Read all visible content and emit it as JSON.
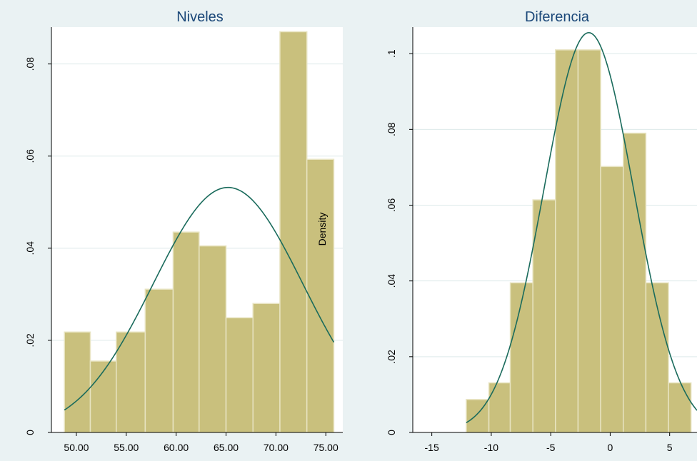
{
  "chart_data": [
    {
      "type": "bar",
      "title": "Niveles",
      "ylabel": "Density",
      "xlim": [
        47.5,
        76.7
      ],
      "ylim": [
        0,
        0.088
      ],
      "x_ticks": [
        50,
        55,
        60,
        65,
        70,
        75
      ],
      "x_tick_labels": [
        "50.00",
        "55.00",
        "60.00",
        "65.00",
        "70.00",
        "75.00"
      ],
      "y_ticks": [
        0,
        0.02,
        0.04,
        0.06,
        0.08
      ],
      "y_tick_labels": [
        "0",
        ".02",
        ".04",
        ".06",
        ".08"
      ],
      "bins": [
        {
          "x0": 48.8,
          "x1": 51.4,
          "value": 0.0218
        },
        {
          "x0": 51.4,
          "x1": 54.0,
          "value": 0.0155
        },
        {
          "x0": 54.0,
          "x1": 56.9,
          "value": 0.0218
        },
        {
          "x0": 56.9,
          "x1": 59.7,
          "value": 0.0311
        },
        {
          "x0": 59.7,
          "x1": 62.3,
          "value": 0.0435
        },
        {
          "x0": 62.3,
          "x1": 65.0,
          "value": 0.0405
        },
        {
          "x0": 65.0,
          "x1": 67.7,
          "value": 0.0249
        },
        {
          "x0": 67.7,
          "x1": 70.4,
          "value": 0.028
        },
        {
          "x0": 70.4,
          "x1": 73.1,
          "value": 0.087
        },
        {
          "x0": 73.1,
          "x1": 75.8,
          "value": 0.0593
        }
      ],
      "normal_curve": {
        "mean": 65.2,
        "sd": 7.5,
        "x_range": [
          48.8,
          75.8
        ]
      }
    },
    {
      "type": "bar",
      "title": "Diferencia",
      "ylabel": "Density",
      "xlim": [
        -16.6,
        7.3
      ],
      "ylim": [
        0,
        0.107
      ],
      "x_ticks": [
        -15,
        -10,
        -5,
        0,
        5
      ],
      "x_tick_labels": [
        "-15",
        "-10",
        "-5",
        "0",
        "5"
      ],
      "y_ticks": [
        0,
        0.02,
        0.04,
        0.06,
        0.08,
        0.1
      ],
      "y_tick_labels": [
        "0",
        ".02",
        ".04",
        ".06",
        ".08",
        ".1"
      ],
      "bins": [
        {
          "x0": -12.1,
          "x1": -10.2,
          "value": 0.0087
        },
        {
          "x0": -10.2,
          "x1": -8.4,
          "value": 0.0131
        },
        {
          "x0": -8.4,
          "x1": -6.5,
          "value": 0.0395
        },
        {
          "x0": -6.5,
          "x1": -4.6,
          "value": 0.0614
        },
        {
          "x0": -4.6,
          "x1": -2.7,
          "value": 0.101
        },
        {
          "x0": -2.7,
          "x1": -0.8,
          "value": 0.101
        },
        {
          "x0": -0.8,
          "x1": 1.1,
          "value": 0.0702
        },
        {
          "x0": 1.1,
          "x1": 3.0,
          "value": 0.079
        },
        {
          "x0": 3.0,
          "x1": 4.9,
          "value": 0.0395
        },
        {
          "x0": 4.9,
          "x1": 6.8,
          "value": 0.0131
        }
      ],
      "normal_curve": {
        "mean": -1.8,
        "sd": 3.78,
        "x_range": [
          -12.1,
          7.3
        ]
      }
    }
  ]
}
